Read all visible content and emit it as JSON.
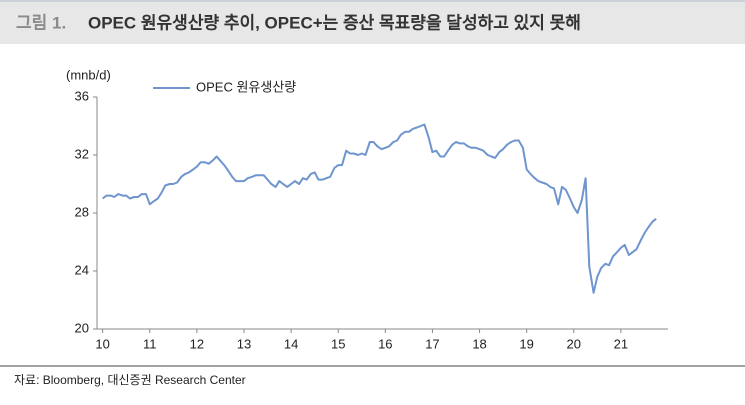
{
  "chart_data": {
    "type": "line",
    "figure_label": "그림 1.",
    "title": "OPEC 원유생산량 추이, OPEC+는 증산 목표량을 달성하고 있지 못해",
    "y_label": "(mnb/d)",
    "source": "자료: Bloomberg, 대신증권 Research Center",
    "x": [
      10,
      10.08,
      10.17,
      10.25,
      10.33,
      10.42,
      10.5,
      10.58,
      10.67,
      10.75,
      10.83,
      10.92,
      11,
      11.08,
      11.17,
      11.25,
      11.33,
      11.42,
      11.5,
      11.58,
      11.67,
      11.75,
      11.83,
      11.92,
      12,
      12.08,
      12.17,
      12.25,
      12.33,
      12.42,
      12.5,
      12.58,
      12.67,
      12.75,
      12.83,
      12.92,
      13,
      13.08,
      13.17,
      13.25,
      13.33,
      13.42,
      13.5,
      13.58,
      13.67,
      13.75,
      13.83,
      13.92,
      14,
      14.08,
      14.17,
      14.25,
      14.33,
      14.42,
      14.5,
      14.58,
      14.67,
      14.75,
      14.83,
      14.92,
      15,
      15.08,
      15.17,
      15.25,
      15.33,
      15.42,
      15.5,
      15.58,
      15.67,
      15.75,
      15.83,
      15.92,
      16,
      16.08,
      16.17,
      16.25,
      16.33,
      16.42,
      16.5,
      16.58,
      16.67,
      16.75,
      16.83,
      16.92,
      17,
      17.08,
      17.17,
      17.25,
      17.33,
      17.42,
      17.5,
      17.58,
      17.67,
      17.75,
      17.83,
      17.92,
      18,
      18.08,
      18.17,
      18.25,
      18.33,
      18.42,
      18.5,
      18.58,
      18.67,
      18.75,
      18.83,
      18.92,
      19,
      19.08,
      19.17,
      19.25,
      19.33,
      19.42,
      19.5,
      19.58,
      19.67,
      19.75,
      19.83,
      19.92,
      20,
      20.08,
      20.17,
      20.25,
      20.33,
      20.42,
      20.5,
      20.58,
      20.67,
      20.75,
      20.83,
      20.92,
      21,
      21.08,
      21.17,
      21.25,
      21.33,
      21.42,
      21.5,
      21.58,
      21.67,
      21.75
    ],
    "series": [
      {
        "name": "OPEC 원유생산량",
        "color": "#6f95cf",
        "values": [
          29.0,
          29.2,
          29.2,
          29.1,
          29.3,
          29.2,
          29.2,
          29.0,
          29.1,
          29.1,
          29.3,
          29.3,
          28.6,
          28.8,
          29.0,
          29.4,
          29.9,
          30.0,
          30.0,
          30.1,
          30.5,
          30.7,
          30.8,
          31.0,
          31.2,
          31.5,
          31.5,
          31.4,
          31.6,
          31.9,
          31.6,
          31.3,
          30.9,
          30.5,
          30.2,
          30.2,
          30.2,
          30.4,
          30.5,
          30.6,
          30.6,
          30.6,
          30.3,
          30.0,
          29.8,
          30.2,
          30.0,
          29.8,
          30.0,
          30.2,
          30.0,
          30.4,
          30.3,
          30.7,
          30.8,
          30.3,
          30.3,
          30.4,
          30.5,
          31.1,
          31.3,
          31.3,
          32.3,
          32.1,
          32.1,
          32.0,
          32.1,
          32.0,
          32.9,
          32.9,
          32.6,
          32.4,
          32.5,
          32.6,
          32.9,
          33.0,
          33.4,
          33.6,
          33.6,
          33.8,
          33.9,
          34.0,
          34.1,
          33.2,
          32.2,
          32.3,
          31.9,
          31.9,
          32.3,
          32.7,
          32.9,
          32.8,
          32.8,
          32.6,
          32.5,
          32.5,
          32.4,
          32.3,
          32.0,
          31.9,
          31.8,
          32.2,
          32.4,
          32.7,
          32.9,
          33.0,
          33.0,
          32.5,
          31.0,
          30.7,
          30.4,
          30.2,
          30.1,
          30.0,
          29.8,
          29.7,
          28.6,
          29.8,
          29.6,
          29.0,
          28.4,
          28.0,
          28.9,
          30.4,
          24.3,
          22.5,
          23.6,
          24.2,
          24.5,
          24.4,
          25.0,
          25.3,
          25.6,
          25.8,
          25.1,
          25.3,
          25.5,
          26.1,
          26.6,
          27.0,
          27.4,
          27.6
        ]
      }
    ],
    "xlim": [
      9.88,
      22.0
    ],
    "xticks": [
      10,
      11,
      12,
      13,
      14,
      15,
      16,
      17,
      18,
      19,
      20,
      21
    ],
    "ylim": [
      20,
      36
    ],
    "yticks": [
      20,
      24,
      28,
      32,
      36
    ]
  }
}
